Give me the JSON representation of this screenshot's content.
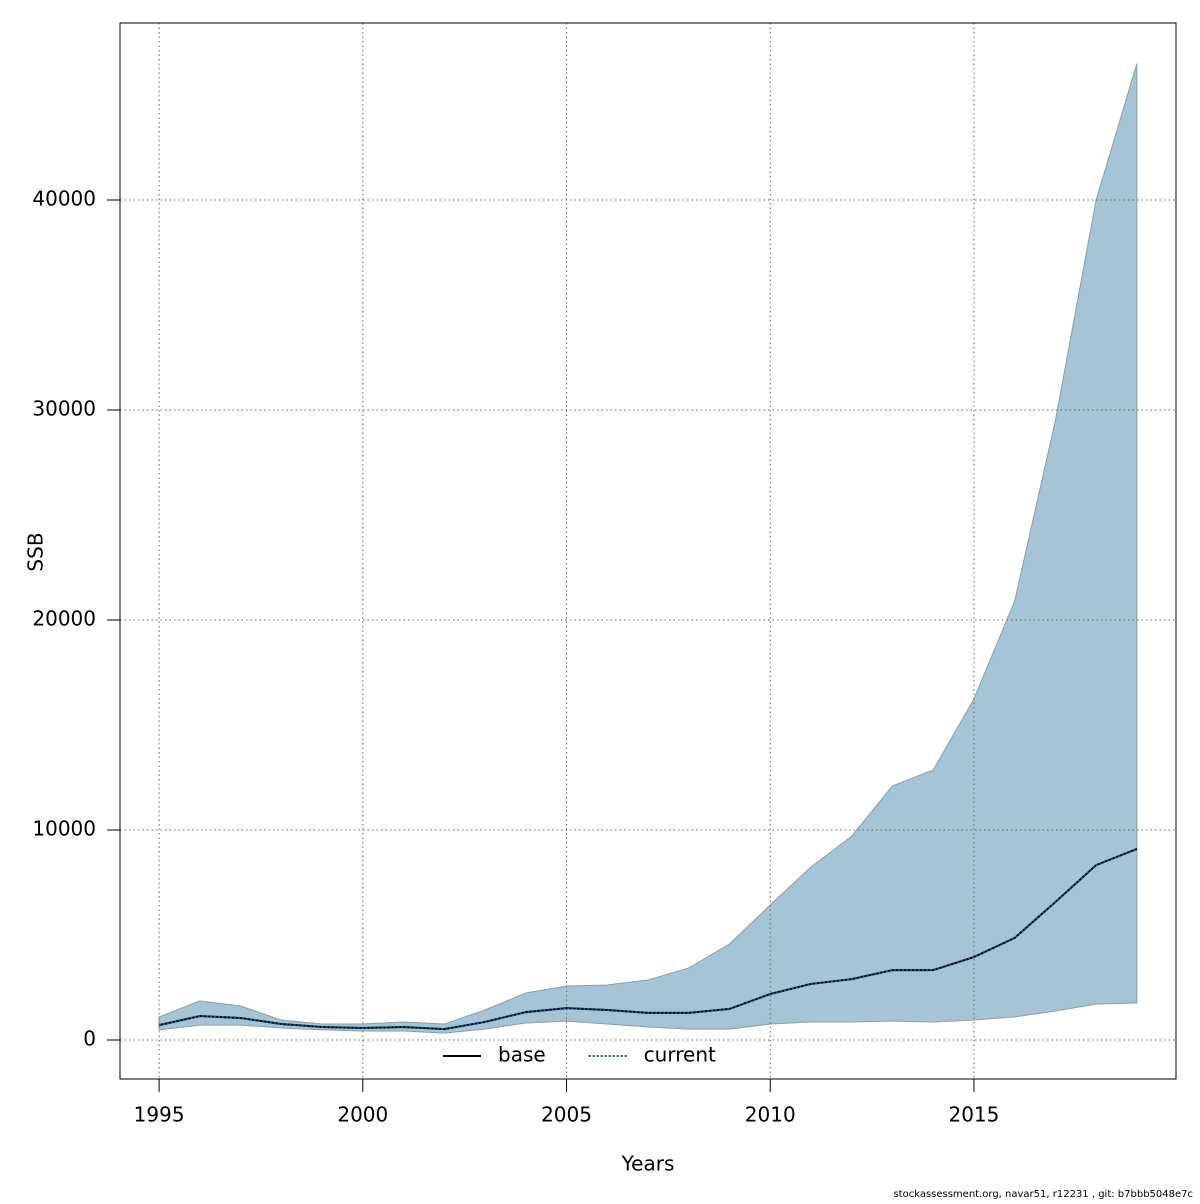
{
  "chart_data": {
    "type": "line",
    "xlabel": "Years",
    "ylabel": "SSB",
    "footer": "stockassessment.org, navar51, r12231 , git: b7bbb5048e7c",
    "x": [
      1995,
      1996,
      1997,
      1998,
      1999,
      2000,
      2001,
      2002,
      2003,
      2004,
      2005,
      2006,
      2007,
      2008,
      2009,
      2010,
      2011,
      2012,
      2013,
      2014,
      2015,
      2016,
      2017,
      2018,
      2019
    ],
    "band": {
      "color": "#a5c4d5",
      "edge": "#8e9ea8",
      "upper": [
        1100,
        1860,
        1620,
        950,
        760,
        760,
        860,
        760,
        1430,
        2240,
        2570,
        2620,
        2860,
        3430,
        4570,
        6430,
        8240,
        9710,
        12100,
        12860,
        16240,
        20900,
        29500,
        40000,
        46500
      ],
      "lower": [
        480,
        710,
        710,
        570,
        480,
        430,
        430,
        330,
        520,
        810,
        900,
        760,
        620,
        520,
        520,
        760,
        860,
        860,
        900,
        860,
        950,
        1100,
        1380,
        1710,
        1760
      ]
    },
    "series": [
      {
        "name": "base",
        "color": "#000000",
        "dashed": false,
        "values": [
          710,
          1140,
          1050,
          760,
          620,
          570,
          620,
          520,
          860,
          1330,
          1520,
          1430,
          1290,
          1290,
          1480,
          2190,
          2670,
          2900,
          3330,
          3330,
          3950,
          4860,
          6570,
          8330,
          9100
        ]
      },
      {
        "name": "current",
        "color": "#0a5a8c",
        "dashed": true,
        "values": [
          710,
          1140,
          1050,
          760,
          620,
          570,
          620,
          520,
          860,
          1330,
          1520,
          1430,
          1290,
          1290,
          1480,
          2190,
          2670,
          2900,
          3330,
          3330,
          3950,
          4860,
          6570,
          8330,
          9100
        ]
      }
    ],
    "xlim": [
      1994.04,
      2019.96
    ],
    "ylim": [
      -1857,
      48429
    ],
    "xticks": [
      1995,
      2000,
      2005,
      2010,
      2015
    ],
    "yticks": [
      0,
      10000,
      20000,
      30000,
      40000
    ],
    "grid": true,
    "legend": "bottom"
  }
}
